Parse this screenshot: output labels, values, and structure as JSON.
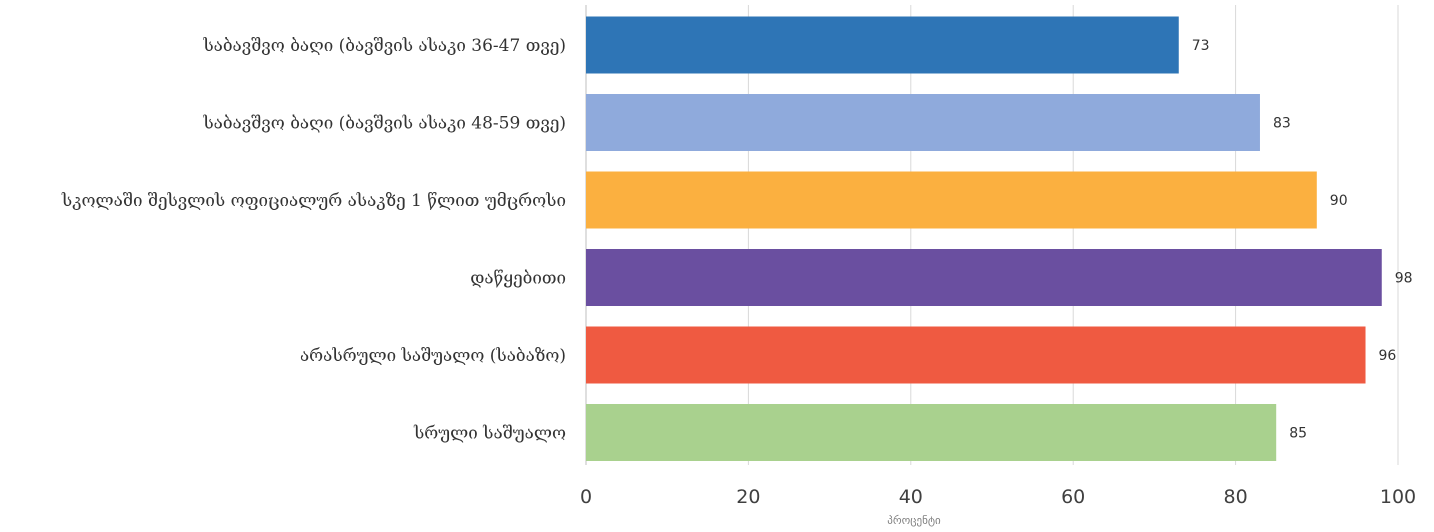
{
  "chart_data": {
    "type": "bar",
    "orientation": "horizontal",
    "categories": [
      "საბავშვო ბაღი (ბავშვის ასაკი 36-47  თვე)",
      "საბავშვო ბაღი (ბავშვის ასაკი 48-59  თვე)",
      "სკოლაში შესვლის ოფიციალურ ასაკზე 1 წლით უმცროსი",
      "დაწყებითი ",
      "არასრული საშუალო (საბაზო)",
      "სრული საშუალო"
    ],
    "values": [
      73,
      83,
      90,
      98,
      96,
      85
    ],
    "data_labels": [
      "73",
      "83",
      "90",
      "98",
      "96",
      "85"
    ],
    "colors": [
      "#2e75b6",
      "#8faadc",
      "#fbb040",
      "#6a4fa0",
      "#ef5a41",
      "#a9d18e"
    ],
    "xlabel": "პროცენტი",
    "ylabel": "",
    "xlim": [
      0,
      100
    ],
    "xticks": [
      "0",
      "20",
      "40",
      "60",
      "80",
      "100"
    ],
    "grid": true,
    "legend": "none"
  }
}
